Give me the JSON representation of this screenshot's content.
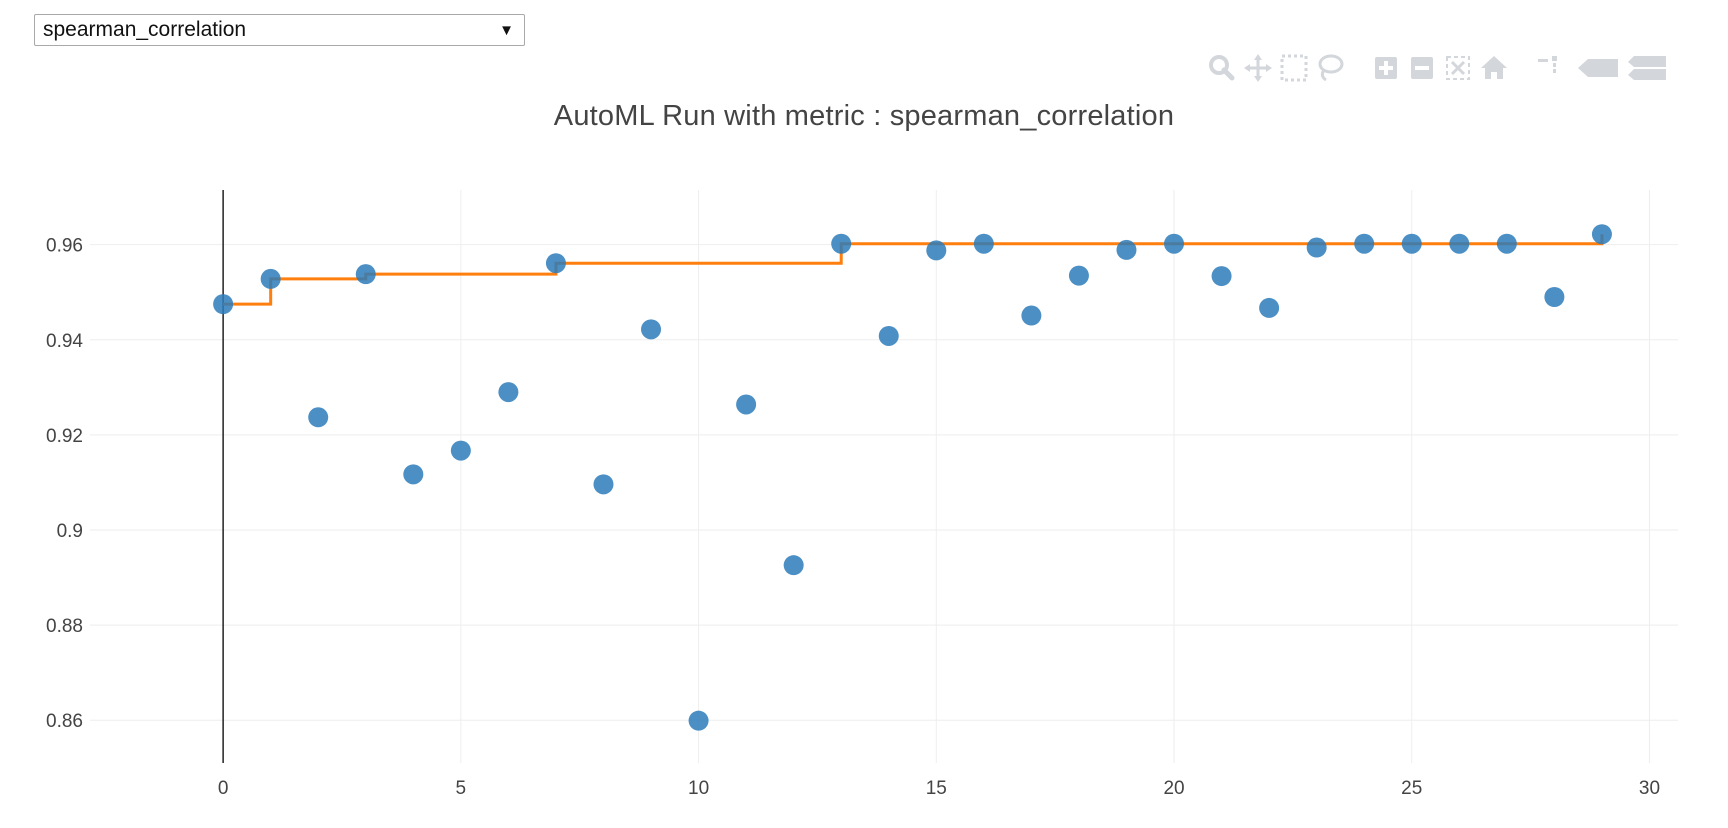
{
  "dropdown": {
    "selected": "spearman_correlation"
  },
  "modebar": {
    "icons": [
      "zoom-icon",
      "pan-icon",
      "box-select-icon",
      "lasso-select-icon",
      "zoom-in-icon",
      "zoom-out-icon",
      "autoscale-icon",
      "reset-axes-icon",
      "spike-lines-icon",
      "hover-closest-icon",
      "hover-compare-icon"
    ]
  },
  "colors": {
    "points": "#2b7bba",
    "best_line": "#ff7f0e",
    "grid": "#eeeeee",
    "zero_line": "#222222",
    "modebar_icon": "#d3d6db"
  },
  "chart_data": {
    "type": "scatter",
    "title": "AutoML Run with metric : spearman_correlation",
    "xlabel": "",
    "ylabel": "",
    "xlim": [
      -2.8,
      30.6
    ],
    "ylim": [
      0.851,
      0.9715
    ],
    "xticks": [
      0,
      5,
      10,
      15,
      20,
      25,
      30
    ],
    "yticks": [
      0.86,
      0.88,
      0.9,
      0.92,
      0.94,
      0.96
    ],
    "ytick_labels": [
      "0.86",
      "0.88",
      "0.9",
      "0.92",
      "0.94",
      "0.96"
    ],
    "grid": true,
    "series": [
      {
        "mode": "markers",
        "x": [
          0,
          1,
          2,
          3,
          4,
          5,
          6,
          7,
          8,
          9,
          10,
          11,
          12,
          13,
          14,
          15,
          16,
          17,
          18,
          19,
          20,
          21,
          22,
          23,
          24,
          25,
          26,
          27,
          28,
          29
        ],
        "values": [
          0.9475,
          0.9528,
          0.9237,
          0.9538,
          0.9117,
          0.9167,
          0.929,
          0.9561,
          0.9096,
          0.9422,
          0.8599,
          0.9264,
          0.8926,
          0.9602,
          0.9408,
          0.9588,
          0.9602,
          0.9451,
          0.9535,
          0.9589,
          0.9602,
          0.9534,
          0.9467,
          0.9594,
          0.9602,
          0.9602,
          0.9602,
          0.9602,
          0.949,
          0.9622
        ]
      },
      {
        "mode": "line-step",
        "x": [
          0,
          1,
          2,
          3,
          4,
          5,
          6,
          7,
          8,
          9,
          10,
          11,
          12,
          13,
          14,
          15,
          16,
          17,
          18,
          19,
          20,
          21,
          22,
          23,
          24,
          25,
          26,
          27,
          28,
          29
        ],
        "values": [
          0.9475,
          0.9528,
          0.9528,
          0.9538,
          0.9538,
          0.9538,
          0.9538,
          0.9561,
          0.9561,
          0.9561,
          0.9561,
          0.9561,
          0.9561,
          0.9602,
          0.9602,
          0.9602,
          0.9602,
          0.9602,
          0.9602,
          0.9602,
          0.9602,
          0.9602,
          0.9602,
          0.9602,
          0.9602,
          0.9602,
          0.9602,
          0.9602,
          0.9602,
          0.9622
        ]
      }
    ]
  }
}
